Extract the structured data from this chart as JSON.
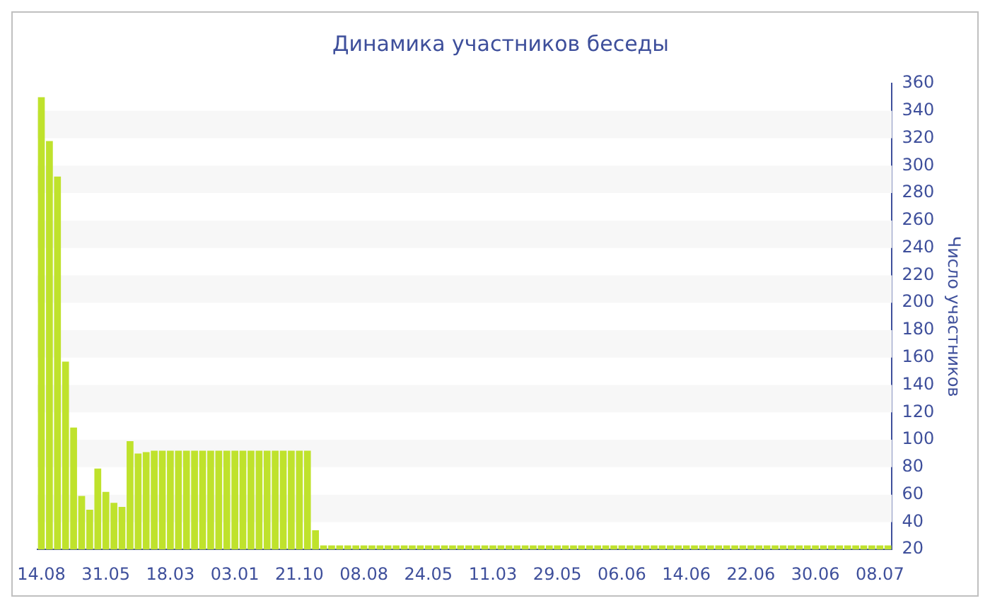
{
  "chart_data": {
    "type": "bar",
    "title": "Динамика участников беседы",
    "ylabel": "Число участников",
    "categories": [
      "14.08",
      null,
      null,
      null,
      null,
      null,
      null,
      null,
      "31.05",
      null,
      null,
      null,
      null,
      null,
      null,
      null,
      "18.03",
      null,
      null,
      null,
      null,
      null,
      null,
      null,
      "03.01",
      null,
      null,
      null,
      null,
      null,
      null,
      null,
      "21.10",
      null,
      null,
      null,
      null,
      null,
      null,
      null,
      "08.08",
      null,
      null,
      null,
      null,
      null,
      null,
      null,
      "24.05",
      null,
      null,
      null,
      null,
      null,
      null,
      null,
      "11.03",
      null,
      null,
      null,
      null,
      null,
      null,
      null,
      "29.05",
      null,
      null,
      null,
      null,
      null,
      null,
      null,
      "06.06",
      null,
      null,
      null,
      null,
      null,
      null,
      null,
      "14.06",
      null,
      null,
      null,
      null,
      null,
      null,
      null,
      "22.06",
      null,
      null,
      null,
      null,
      null,
      null,
      null,
      "30.06",
      null,
      null,
      null,
      null,
      null,
      null,
      null,
      "08.07",
      null
    ],
    "values": [
      350,
      318,
      292,
      157,
      109,
      59,
      49,
      79,
      62,
      54,
      51,
      99,
      90,
      91,
      92,
      92,
      92,
      92,
      92,
      92,
      92,
      92,
      92,
      92,
      92,
      92,
      92,
      92,
      92,
      92,
      92,
      92,
      92,
      92,
      34,
      23,
      23,
      23,
      23,
      23,
      23,
      23,
      23,
      23,
      23,
      23,
      23,
      23,
      23,
      23,
      23,
      23,
      23,
      23,
      23,
      23,
      23,
      23,
      23,
      23,
      23,
      23,
      23,
      23,
      23,
      23,
      23,
      23,
      23,
      23,
      23,
      23,
      23,
      23,
      23,
      23,
      23,
      23,
      23,
      23,
      23,
      23,
      23,
      23,
      23,
      23,
      23,
      23,
      23,
      23,
      23,
      23,
      23,
      23,
      23,
      23,
      23,
      23,
      23,
      23,
      23,
      23,
      23,
      23,
      23,
      23
    ],
    "color": "#bfe22c",
    "ylim": [
      20,
      360
    ],
    "yticks": [
      20,
      40,
      60,
      80,
      100,
      120,
      140,
      160,
      180,
      200,
      220,
      240,
      260,
      280,
      300,
      320,
      340,
      360
    ],
    "bands": [
      {
        "axis": "y",
        "from": 40,
        "to": 60,
        "color": "#f7f7f7"
      },
      {
        "axis": "y",
        "from": 80,
        "to": 100,
        "color": "#f7f7f7"
      },
      {
        "axis": "y",
        "from": 120,
        "to": 140,
        "color": "#f7f7f7"
      },
      {
        "axis": "y",
        "from": 160,
        "to": 180,
        "color": "#f7f7f7"
      },
      {
        "axis": "y",
        "from": 200,
        "to": 220,
        "color": "#f7f7f7"
      },
      {
        "axis": "y",
        "from": 240,
        "to": 260,
        "color": "#f7f7f7"
      },
      {
        "axis": "y",
        "from": 280,
        "to": 300,
        "color": "#f7f7f7"
      },
      {
        "axis": "y",
        "from": 320,
        "to": 340,
        "color": "#f7f7f7"
      }
    ]
  }
}
